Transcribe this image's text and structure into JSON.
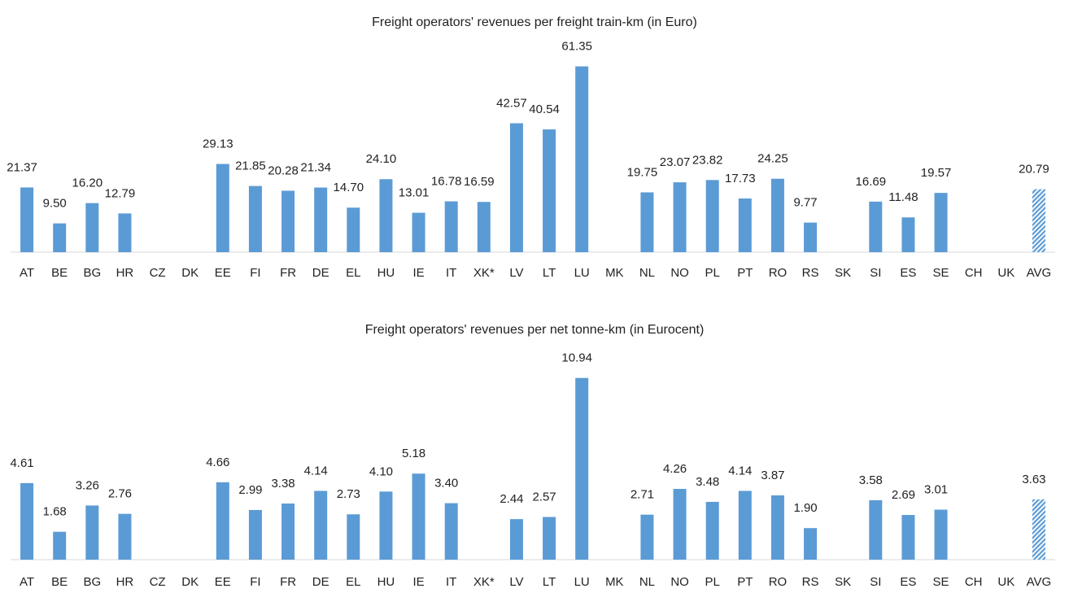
{
  "chart_data": [
    {
      "type": "bar",
      "title": "Freight operators' revenues per freight train-km (in Euro)",
      "categories": [
        "AT",
        "BE",
        "BG",
        "HR",
        "CZ",
        "DK",
        "EE",
        "FI",
        "FR",
        "DE",
        "EL",
        "HU",
        "IE",
        "IT",
        "XK*",
        "LV",
        "LT",
        "LU",
        "MK",
        "NL",
        "NO",
        "PL",
        "PT",
        "RO",
        "RS",
        "SK",
        "SI",
        "ES",
        "SE",
        "CH",
        "UK",
        "AVG"
      ],
      "values": [
        21.37,
        9.5,
        16.2,
        12.79,
        null,
        null,
        29.13,
        21.85,
        20.28,
        21.34,
        14.7,
        24.1,
        13.01,
        16.78,
        16.59,
        42.57,
        40.54,
        61.35,
        null,
        19.75,
        23.07,
        23.82,
        17.73,
        24.25,
        9.77,
        null,
        16.69,
        11.48,
        19.57,
        null,
        null,
        20.79
      ],
      "value_labels": [
        "21.37",
        "9.50",
        "16.20",
        "12.79",
        null,
        null,
        "29.13",
        "21.85",
        "20.28",
        "21.34",
        "14.70",
        "24.10",
        "13.01",
        "16.78",
        "16.59",
        "42.57",
        "40.54",
        "61.35",
        null,
        "19.75",
        "23.07",
        "23.82",
        "17.73",
        "24.25",
        "9.77",
        null,
        "16.69",
        "11.48",
        "19.57",
        null,
        null,
        "20.79"
      ],
      "color": "#5b9bd5",
      "ylim": [
        0,
        65
      ]
    },
    {
      "type": "bar",
      "title": "Freight operators' revenues per net tonne-km (in Eurocent)",
      "categories": [
        "AT",
        "BE",
        "BG",
        "HR",
        "CZ",
        "DK",
        "EE",
        "FI",
        "FR",
        "DE",
        "EL",
        "HU",
        "IE",
        "IT",
        "XK*",
        "LV",
        "LT",
        "LU",
        "MK",
        "NL",
        "NO",
        "PL",
        "PT",
        "RO",
        "RS",
        "SK",
        "SI",
        "ES",
        "SE",
        "CH",
        "UK",
        "AVG"
      ],
      "values": [
        4.61,
        1.68,
        3.26,
        2.76,
        null,
        null,
        4.66,
        2.99,
        3.38,
        4.14,
        2.73,
        4.1,
        5.18,
        3.4,
        null,
        2.44,
        2.57,
        10.94,
        null,
        2.71,
        4.26,
        3.48,
        4.14,
        3.87,
        1.9,
        null,
        3.58,
        2.69,
        3.01,
        null,
        null,
        3.63
      ],
      "value_labels": [
        "4.61",
        "1.68",
        "3.26",
        "2.76",
        null,
        null,
        "4.66",
        "2.99",
        "3.38",
        "4.14",
        "2.73",
        "4.10",
        "5.18",
        "3.40",
        null,
        "2.44",
        "2.57",
        "10.94",
        null,
        "2.71",
        "4.26",
        "3.48",
        "4.14",
        "3.87",
        "1.90",
        null,
        "3.58",
        "2.69",
        "3.01",
        null,
        null,
        "3.63"
      ],
      "color": "#5b9bd5",
      "ylim": [
        0,
        12
      ]
    }
  ]
}
